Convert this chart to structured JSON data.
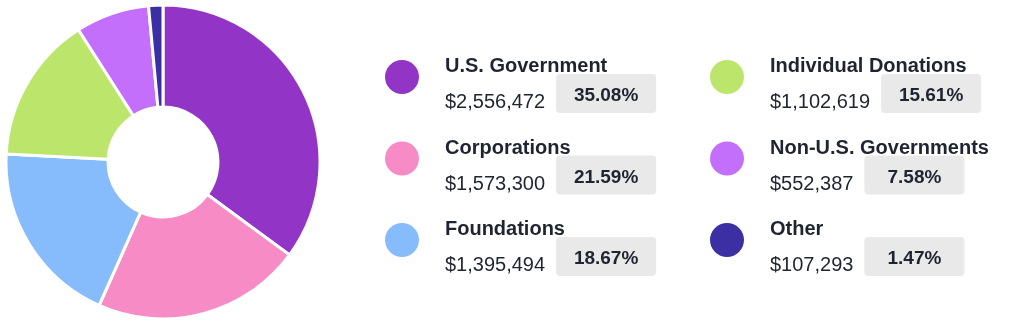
{
  "chart_data": {
    "type": "donut",
    "legend": "right",
    "categories": [
      "U.S. Government",
      "Corporations",
      "Foundations",
      "Individual Donations",
      "Non-U.S. Governments",
      "Other"
    ],
    "values": [
      2556472,
      1573300,
      1395494,
      1102619,
      552387,
      107293
    ],
    "value_labels": [
      "$2,556,472",
      "$1,573,300",
      "$1,395,494",
      "$1,102,619",
      "$552,387",
      "$107,293"
    ],
    "annotations": [
      "35.08%",
      "21.59%",
      "18.67%",
      "15.61%",
      "7.58%",
      "1.47%"
    ],
    "colors": [
      "#9234c6",
      "#f78bc6",
      "#86bcfb",
      "#bce66b",
      "#c46ffc",
      "#3c2fa3"
    ]
  }
}
